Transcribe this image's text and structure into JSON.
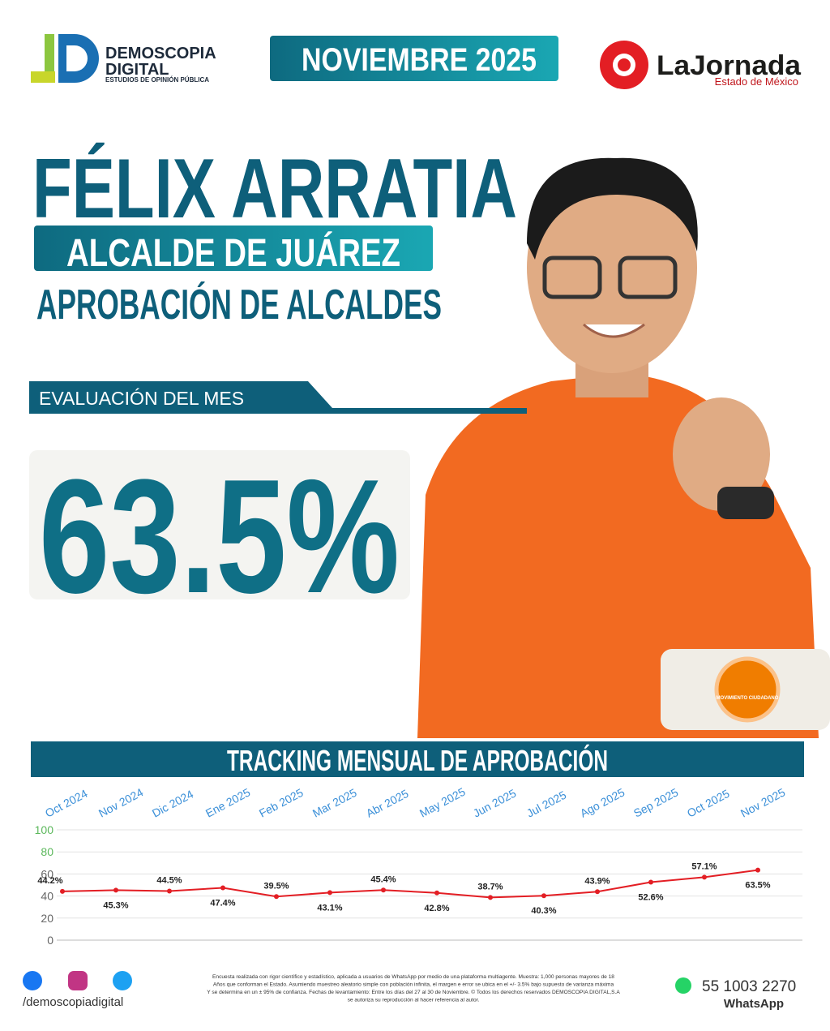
{
  "header": {
    "brand": "DEMOSCOPIA",
    "brand2": "DIGITAL",
    "brand_sub": "ESTUDIOS DE OPINIÓN PÚBLICA",
    "date": "NOVIEMBRE 2025",
    "partner": "LaJornada",
    "partner_sub": "Estado de México"
  },
  "name": "FÉLIX ARRATIA",
  "role": "ALCALDE DE JUÁREZ",
  "subtitle": "APROBACIÓN DE ALCALDES",
  "eval_label": "EVALUACIÓN DEL MES",
  "eval_value": "63.5%",
  "party": "MOVIMIENTO CIUDADANO",
  "chart_data": {
    "type": "line",
    "title": "TRACKING MENSUAL DE APROBACIÓN",
    "categories": [
      "Oct 2024",
      "Nov 2024",
      "Dic 2024",
      "Ene 2025",
      "Feb 2025",
      "Mar 2025",
      "Abr 2025",
      "May 2025",
      "Jun 2025",
      "Jul 2025",
      "Ago 2025",
      "Sep 2025",
      "Oct 2025",
      "Nov 2025"
    ],
    "series": [
      {
        "color": "#e31e24",
        "values": [
          44.2,
          45.3,
          44.5,
          47.4,
          39.5,
          43.1,
          45.4,
          42.8,
          38.7,
          40.3,
          43.9,
          52.6,
          57.1,
          63.5
        ],
        "value_labels": [
          "44.2%",
          "45.3%",
          "44.5%",
          "47.4%",
          "39.5%",
          "43.1%",
          "45.4%",
          "42.8%",
          "38.7%",
          "40.3%",
          "43.9%",
          "52.6%",
          "57.1%",
          "63.5%"
        ]
      }
    ],
    "ylim": [
      0,
      100
    ],
    "yticks": [
      0,
      20,
      40,
      60,
      80,
      100
    ],
    "grid": true
  },
  "footer": {
    "social": "/demoscopiadigital",
    "disclaimer": [
      "Encuesta realizada con rigor científico y estadístico, aplicada a usuarios de WhatsApp por medio de una plataforma multiagente. Muestra: 1,000 personas mayores de 18",
      "Años que conforman el Estado. Asumiendo muestreo aleatorio simple con población infinita, el margen e error se ubica en el +/- 3.5% bajo supuesto de varianza máxima",
      "Y se determina en un ± 95% de confianza. Fechas de levantamiento: Entre los días del 27 al 30 de Noviembre. © Todos los derechos reservados DEMOSCOPIA DIGITAL,S.A",
      "se autoriza su reproducción al hacer referencia al autor."
    ],
    "phone": "55 1003 2270",
    "whatsapp": "WhatsApp"
  }
}
